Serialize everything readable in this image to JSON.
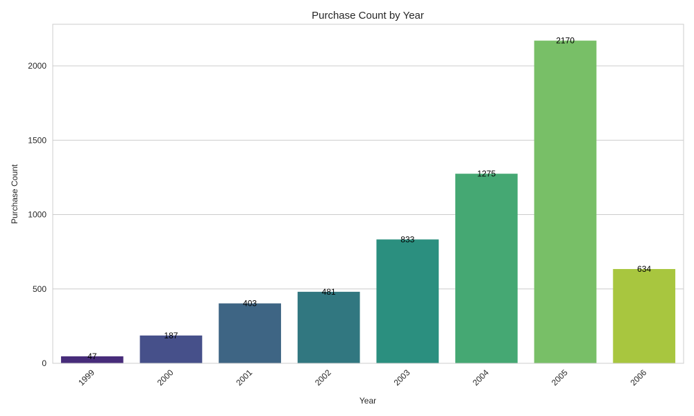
{
  "chart_data": {
    "type": "bar",
    "title": "Purchase Count by Year",
    "xlabel": "Year",
    "ylabel": "Purchase Count",
    "categories": [
      "1999",
      "2000",
      "2001",
      "2002",
      "2003",
      "2004",
      "2005",
      "2006"
    ],
    "values": [
      47,
      187,
      403,
      481,
      833,
      1275,
      2170,
      634
    ],
    "value_labels": [
      "47",
      "187",
      "403",
      "481",
      "833",
      "1275",
      "2170",
      "634"
    ],
    "colors": [
      "#472c7a",
      "#46508a",
      "#3e6584",
      "#317780",
      "#2b8f7f",
      "#45a873",
      "#78bf67",
      "#a8c63f"
    ],
    "ylim": [
      0,
      2280
    ],
    "yticks": [
      0,
      500,
      1000,
      1500,
      2000
    ],
    "ytick_labels": [
      "0",
      "500",
      "1000",
      "1500",
      "2000"
    ],
    "grid": "horizontal",
    "legend": "none"
  }
}
